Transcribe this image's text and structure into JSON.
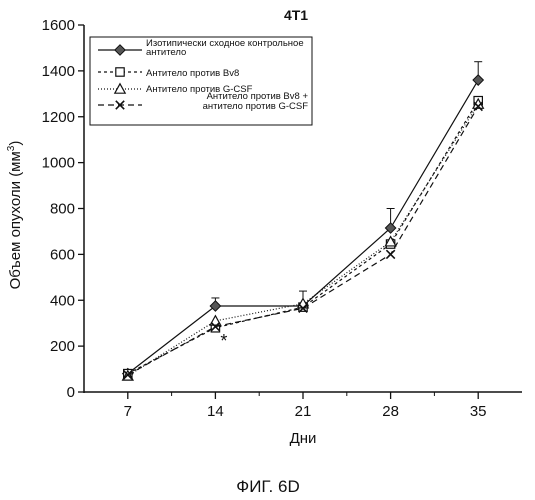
{
  "figure_caption": "ФИГ. 6D",
  "chart_data": {
    "type": "line",
    "title": "4T1",
    "xlabel": "Дни",
    "ylabel_main": "Объем опухоли (мм",
    "ylabel_sup": "3",
    "ylabel_close": ")",
    "x": [
      7,
      14,
      21,
      28,
      35
    ],
    "x_ticks": [
      "7",
      "14",
      "21",
      "28",
      "35"
    ],
    "y_ticks": [
      "0",
      "200",
      "400",
      "600",
      "800",
      "1000",
      "1200",
      "1400",
      "1600"
    ],
    "ylim": [
      0,
      1600
    ],
    "xlim": [
      3.5,
      38.5
    ],
    "annotation": {
      "text": "*",
      "x": 14,
      "y": 230
    },
    "series": [
      {
        "name": "Изотипически сходное контрольное антитело",
        "values": [
          80,
          375,
          375,
          715,
          1360
        ],
        "errors": [
          0,
          35,
          0,
          85,
          80
        ],
        "marker": "diamond",
        "dash": ""
      },
      {
        "name": "Антитело против Bv8",
        "values": [
          80,
          280,
          370,
          645,
          1270
        ],
        "errors": [
          0,
          0,
          0,
          0,
          0
        ],
        "marker": "square",
        "dash": "3,3"
      },
      {
        "name": "Антитело против G-CSF",
        "values": [
          70,
          310,
          385,
          655,
          1255
        ],
        "errors": [
          0,
          0,
          55,
          0,
          0
        ],
        "marker": "triangle",
        "dash": "1,2"
      },
      {
        "name": "Антитело против Bv8 + антитело против G-CSF",
        "values": [
          75,
          285,
          365,
          600,
          1245
        ],
        "errors": [
          0,
          0,
          0,
          0,
          0
        ],
        "marker": "cross",
        "dash": "6,4"
      }
    ],
    "legend": {
      "placement": "top-left",
      "labels": [
        [
          "Изотипически сходное контрольное",
          "антитело"
        ],
        [
          "Антитело против Bv8"
        ],
        [
          "Антитело против G-CSF"
        ],
        [
          "Антитело против Bv8 +",
          "антитело против G-CSF"
        ]
      ]
    }
  }
}
